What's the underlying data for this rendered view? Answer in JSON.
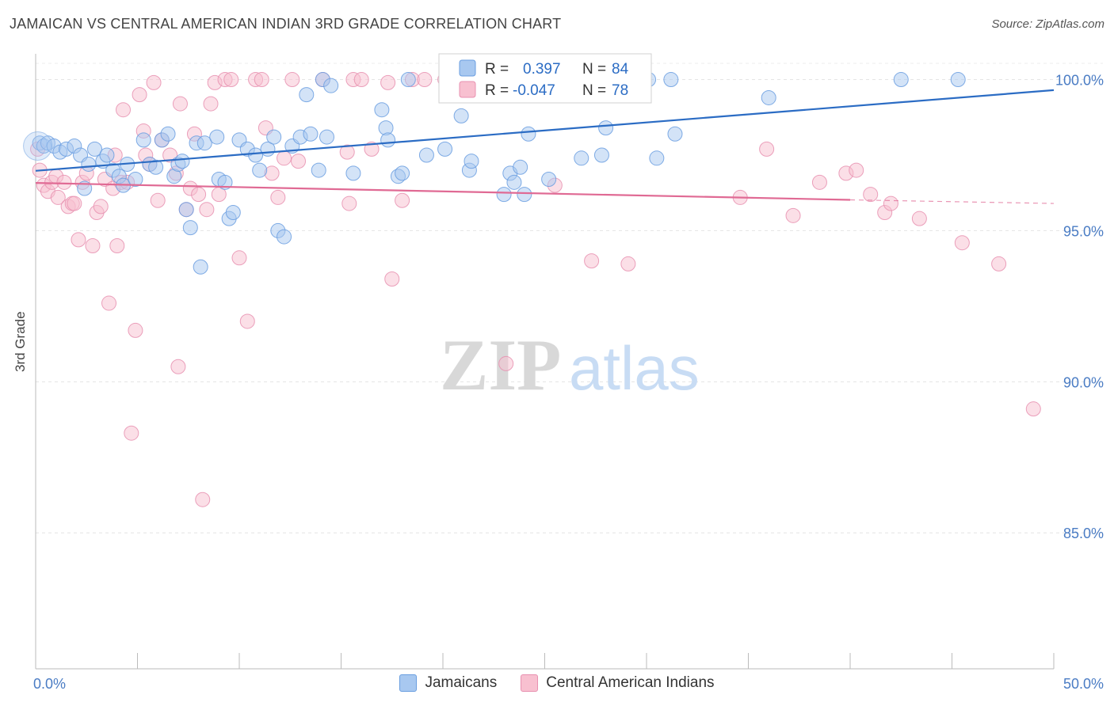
{
  "header": {
    "title": "JAMAICAN VS CENTRAL AMERICAN INDIAN 3RD GRADE CORRELATION CHART",
    "source": "Source: ZipAtlas.com"
  },
  "watermark": {
    "part1": "ZIP",
    "part2": "atlas"
  },
  "legend": {
    "r_label": "R =",
    "n_label": "N =",
    "rows": [
      {
        "r": "0.397",
        "n": "84",
        "color": "#a8c8f0",
        "stroke": "#6a9ee0"
      },
      {
        "r": "-0.047",
        "n": "78",
        "color": "#f8c0d0",
        "stroke": "#e890b0"
      }
    ]
  },
  "bottom_legend": [
    {
      "label": "Jamaicans",
      "color": "#a8c8f0",
      "stroke": "#6a9ee0"
    },
    {
      "label": "Central American Indians",
      "color": "#f8c0d0",
      "stroke": "#e890b0"
    }
  ],
  "chart_data": {
    "type": "scatter",
    "title": "JAMAICAN VS CENTRAL AMERICAN INDIAN 3RD GRADE CORRELATION CHART",
    "xlabel": "",
    "ylabel": "3rd Grade",
    "xlim": [
      0,
      50
    ],
    "ylim": [
      80.5,
      100.8
    ],
    "x_tick_labels": [
      {
        "value": 0,
        "label": "0.0%"
      },
      {
        "value": 50,
        "label": "50.0%"
      }
    ],
    "y_ticks": [
      {
        "value": 100,
        "label": "100.0%"
      },
      {
        "value": 95,
        "label": "95.0%"
      },
      {
        "value": 90,
        "label": "90.0%"
      },
      {
        "value": 85,
        "label": "85.0%"
      }
    ],
    "x_minor_ticks": [
      0,
      5,
      10,
      15,
      20,
      25,
      30,
      35,
      40,
      45,
      50
    ],
    "grid": true,
    "series": [
      {
        "name": "Jamaicans",
        "color": "#6a9ee0",
        "fill": "#a8c8f0",
        "trend": {
          "x": [
            0,
            50
          ],
          "y": [
            96.98,
            99.65
          ],
          "color": "#2b6cc4"
        },
        "points": [
          [
            0.2,
            97.9
          ],
          [
            0.4,
            97.8
          ],
          [
            0.6,
            97.9
          ],
          [
            0.9,
            97.8
          ],
          [
            1.2,
            97.6
          ],
          [
            1.5,
            97.7
          ],
          [
            1.9,
            97.8
          ],
          [
            2.2,
            97.5
          ],
          [
            2.6,
            97.2
          ],
          [
            2.9,
            97.7
          ],
          [
            3.3,
            97.3
          ],
          [
            3.5,
            97.5
          ],
          [
            3.8,
            97.0
          ],
          [
            4.1,
            96.8
          ],
          [
            4.3,
            96.5
          ],
          [
            4.5,
            97.2
          ],
          [
            4.9,
            96.7
          ],
          [
            5.3,
            98.0
          ],
          [
            5.6,
            97.2
          ],
          [
            5.9,
            97.1
          ],
          [
            6.2,
            98.0
          ],
          [
            6.5,
            98.2
          ],
          [
            6.8,
            96.8
          ],
          [
            7.0,
            97.2
          ],
          [
            7.2,
            97.3
          ],
          [
            7.4,
            95.7
          ],
          [
            7.6,
            95.1
          ],
          [
            8.1,
            93.8
          ],
          [
            7.9,
            97.9
          ],
          [
            8.3,
            97.9
          ],
          [
            8.9,
            98.1
          ],
          [
            9.0,
            96.7
          ],
          [
            9.3,
            96.6
          ],
          [
            9.5,
            95.4
          ],
          [
            9.7,
            95.6
          ],
          [
            10.0,
            98.0
          ],
          [
            10.4,
            97.7
          ],
          [
            10.8,
            97.5
          ],
          [
            11.0,
            97.0
          ],
          [
            11.4,
            97.7
          ],
          [
            11.7,
            98.1
          ],
          [
            11.9,
            95.0
          ],
          [
            12.2,
            94.8
          ],
          [
            12.6,
            97.8
          ],
          [
            13.0,
            98.1
          ],
          [
            13.5,
            98.2
          ],
          [
            13.3,
            99.5
          ],
          [
            13.9,
            97.0
          ],
          [
            14.3,
            98.1
          ],
          [
            14.1,
            100.0
          ],
          [
            14.5,
            99.8
          ],
          [
            17.0,
            99.0
          ],
          [
            17.2,
            98.4
          ],
          [
            17.3,
            98.0
          ],
          [
            17.8,
            96.8
          ],
          [
            18.0,
            96.9
          ],
          [
            18.3,
            100.0
          ],
          [
            19.2,
            97.5
          ],
          [
            20.1,
            97.7
          ],
          [
            20.9,
            98.8
          ],
          [
            21.3,
            97.0
          ],
          [
            21.4,
            97.3
          ],
          [
            22.2,
            100.0
          ],
          [
            23.3,
            96.9
          ],
          [
            23.0,
            96.2
          ],
          [
            23.5,
            96.6
          ],
          [
            23.8,
            97.1
          ],
          [
            24.0,
            96.2
          ],
          [
            24.2,
            98.2
          ],
          [
            25.2,
            96.7
          ],
          [
            26.8,
            97.4
          ],
          [
            27.1,
            100.0
          ],
          [
            27.8,
            97.5
          ],
          [
            28.0,
            98.4
          ],
          [
            29.0,
            100.0
          ],
          [
            30.5,
            97.4
          ],
          [
            30.1,
            100.0
          ],
          [
            31.2,
            100.0
          ],
          [
            31.4,
            98.2
          ],
          [
            36.0,
            99.4
          ],
          [
            42.5,
            100.0
          ],
          [
            45.3,
            100.0
          ],
          [
            2.4,
            96.4
          ],
          [
            15.6,
            96.9
          ]
        ]
      },
      {
        "name": "Central American Indians",
        "color": "#e890b0",
        "fill": "#f8c0d0",
        "trend": {
          "x": [
            0,
            40
          ],
          "y": [
            96.58,
            96.02
          ],
          "dashed_to": [
            50,
            95.9
          ],
          "color": "#e06a94"
        },
        "points": [
          [
            0.1,
            97.7
          ],
          [
            0.2,
            97.0
          ],
          [
            0.4,
            96.5
          ],
          [
            0.6,
            96.3
          ],
          [
            0.8,
            96.6
          ],
          [
            1.0,
            96.8
          ],
          [
            1.1,
            96.1
          ],
          [
            1.4,
            96.6
          ],
          [
            1.6,
            95.8
          ],
          [
            1.8,
            95.9
          ],
          [
            1.9,
            95.9
          ],
          [
            2.1,
            94.7
          ],
          [
            2.3,
            96.6
          ],
          [
            2.5,
            96.9
          ],
          [
            2.8,
            94.5
          ],
          [
            3.0,
            95.6
          ],
          [
            3.2,
            95.8
          ],
          [
            3.4,
            96.7
          ],
          [
            3.6,
            92.6
          ],
          [
            3.8,
            96.4
          ],
          [
            3.9,
            97.5
          ],
          [
            4.2,
            96.6
          ],
          [
            4.0,
            94.5
          ],
          [
            4.3,
            99.0
          ],
          [
            4.5,
            96.6
          ],
          [
            4.7,
            88.3
          ],
          [
            4.9,
            91.7
          ],
          [
            5.1,
            99.5
          ],
          [
            5.3,
            98.3
          ],
          [
            5.4,
            97.5
          ],
          [
            5.6,
            97.2
          ],
          [
            5.8,
            99.9
          ],
          [
            6.0,
            96.0
          ],
          [
            6.2,
            98.0
          ],
          [
            6.6,
            97.5
          ],
          [
            6.9,
            96.9
          ],
          [
            7.0,
            90.5
          ],
          [
            7.1,
            99.2
          ],
          [
            7.4,
            95.7
          ],
          [
            7.6,
            96.4
          ],
          [
            7.8,
            98.2
          ],
          [
            8.0,
            96.2
          ],
          [
            8.2,
            86.1
          ],
          [
            8.4,
            95.7
          ],
          [
            8.6,
            99.2
          ],
          [
            8.8,
            99.9
          ],
          [
            9.3,
            100.0
          ],
          [
            9.0,
            96.2
          ],
          [
            9.6,
            100.0
          ],
          [
            10.0,
            94.1
          ],
          [
            10.4,
            92.0
          ],
          [
            10.8,
            100.0
          ],
          [
            11.1,
            100.0
          ],
          [
            11.3,
            98.4
          ],
          [
            11.6,
            96.9
          ],
          [
            11.9,
            96.1
          ],
          [
            12.2,
            97.4
          ],
          [
            12.6,
            100.0
          ],
          [
            12.9,
            97.3
          ],
          [
            14.1,
            100.0
          ],
          [
            15.3,
            97.6
          ],
          [
            15.6,
            100.0
          ],
          [
            16.0,
            100.0
          ],
          [
            17.3,
            99.9
          ],
          [
            17.5,
            93.4
          ],
          [
            18.0,
            96.0
          ],
          [
            16.5,
            97.7
          ],
          [
            15.4,
            95.9
          ],
          [
            18.5,
            100.0
          ],
          [
            19.1,
            100.0
          ],
          [
            20.1,
            100.0
          ],
          [
            21.2,
            100.0
          ],
          [
            23.1,
            90.6
          ],
          [
            24.5,
            100.0
          ],
          [
            25.5,
            96.5
          ],
          [
            28.7,
            100.0
          ],
          [
            23.5,
            100.0
          ],
          [
            21.1,
            100.0
          ]
        ],
        "extra_points": [
          [
            23.0,
            100.0
          ],
          [
            23.9,
            100.0
          ],
          [
            29.1,
            93.9
          ],
          [
            27.3,
            94.0
          ],
          [
            34.6,
            96.1
          ],
          [
            35.9,
            97.7
          ],
          [
            37.2,
            95.5
          ],
          [
            38.5,
            96.6
          ],
          [
            39.8,
            96.9
          ],
          [
            40.3,
            97.0
          ],
          [
            41.0,
            96.2
          ],
          [
            41.7,
            95.6
          ],
          [
            42.0,
            95.9
          ],
          [
            45.5,
            94.6
          ],
          [
            47.3,
            93.9
          ],
          [
            49.0,
            89.1
          ],
          [
            43.4,
            95.4
          ]
        ]
      }
    ]
  }
}
